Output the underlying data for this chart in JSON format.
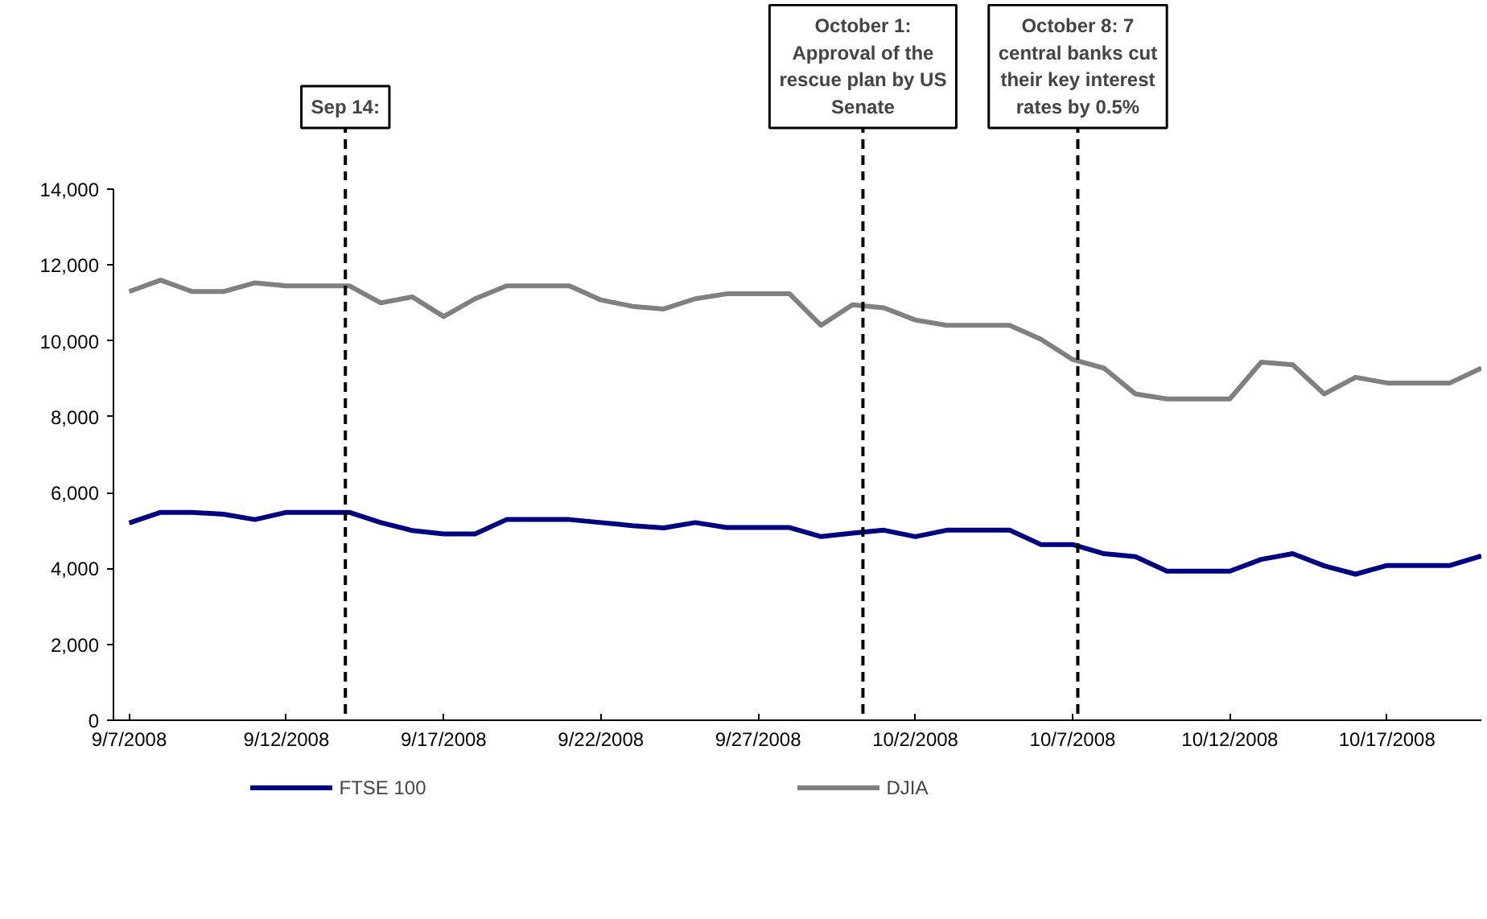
{
  "chart_data": {
    "type": "line",
    "x": [
      "2008-09-07",
      "2008-09-08",
      "2008-09-09",
      "2008-09-10",
      "2008-09-11",
      "2008-09-12",
      "2008-09-14",
      "2008-09-15",
      "2008-09-16",
      "2008-09-17",
      "2008-09-18",
      "2008-09-19",
      "2008-09-21",
      "2008-09-22",
      "2008-09-23",
      "2008-09-24",
      "2008-09-25",
      "2008-09-26",
      "2008-09-28",
      "2008-09-29",
      "2008-09-30",
      "2008-10-01",
      "2008-10-02",
      "2008-10-03",
      "2008-10-05",
      "2008-10-06",
      "2008-10-07",
      "2008-10-08",
      "2008-10-09",
      "2008-10-10",
      "2008-10-12",
      "2008-10-13",
      "2008-10-14",
      "2008-10-15",
      "2008-10-16",
      "2008-10-17",
      "2008-10-19",
      "2008-10-20"
    ],
    "series": [
      {
        "name": "FTSE 100",
        "color": "#000080",
        "values": [
          5200,
          5480,
          5480,
          5430,
          5290,
          5480,
          5480,
          5210,
          5000,
          4910,
          4910,
          5290,
          5290,
          5210,
          5130,
          5070,
          5210,
          5080,
          5080,
          4840,
          4930,
          5010,
          4840,
          5010,
          5010,
          4630,
          4630,
          4390,
          4310,
          3930,
          3930,
          4240,
          4390,
          4070,
          3850,
          4080,
          4080,
          4330
        ]
      },
      {
        "name": "DJIA",
        "color": "#808080",
        "values": [
          11300,
          11600,
          11300,
          11300,
          11530,
          11450,
          11450,
          11000,
          11160,
          10640,
          11110,
          11450,
          11450,
          11080,
          10910,
          10840,
          11110,
          11240,
          11240,
          10410,
          10950,
          10870,
          10550,
          10410,
          10410,
          10040,
          9510,
          9280,
          8600,
          8470,
          8470,
          9440,
          9370,
          8600,
          9040,
          8890,
          8890,
          9280
        ]
      }
    ],
    "xlim": [
      "2008-09-06T12:00",
      "2008-10-20"
    ],
    "xticks": [
      {
        "value": "2008-09-07",
        "label": "9/7/2008"
      },
      {
        "value": "2008-09-12",
        "label": "9/12/2008"
      },
      {
        "value": "2008-09-17",
        "label": "9/17/2008"
      },
      {
        "value": "2008-09-22",
        "label": "9/22/2008"
      },
      {
        "value": "2008-09-27",
        "label": "9/27/2008"
      },
      {
        "value": "2008-10-02",
        "label": "10/2/2008"
      },
      {
        "value": "2008-10-07",
        "label": "10/7/2008"
      },
      {
        "value": "2008-10-12",
        "label": "10/12/2008"
      },
      {
        "value": "2008-10-17",
        "label": "10/17/2008"
      }
    ],
    "ylim": [
      0,
      14000
    ],
    "yticks": [
      {
        "value": 0,
        "label": "0"
      },
      {
        "value": 2000,
        "label": "2,000"
      },
      {
        "value": 4000,
        "label": "4,000"
      },
      {
        "value": 6000,
        "label": "6,000"
      },
      {
        "value": 8000,
        "label": "8,000"
      },
      {
        "value": 10000,
        "label": "10,000"
      },
      {
        "value": 12000,
        "label": "12,000"
      },
      {
        "value": 14000,
        "label": "14,000"
      }
    ],
    "ref_lines": [
      {
        "axis": "x",
        "value": "2008-09-13T21:00",
        "label": "Sep 14:",
        "color": "#000000",
        "line_style": "dashed"
      },
      {
        "axis": "x",
        "value": "2008-09-30T08:00",
        "label": "October 1:\nApproval of the\nrescue plan by US\nSenate",
        "color": "#000000",
        "line_style": "dashed"
      },
      {
        "axis": "x",
        "value": "2008-10-07T04:00",
        "label": "October 8: 7\ncentral banks cut\ntheir key interest\nrates by 0.5%",
        "color": "#000000",
        "line_style": "dashed"
      }
    ],
    "grid": false,
    "legend": "bottom",
    "marker": "none",
    "line_style": "solid"
  }
}
